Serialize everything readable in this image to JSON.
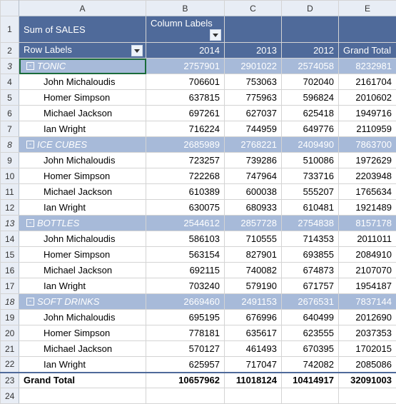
{
  "columns": [
    "A",
    "B",
    "C",
    "D",
    "E"
  ],
  "header": {
    "row1": {
      "a": "Sum of SALES",
      "b": "Column Labels"
    },
    "row2": {
      "a": "Row Labels",
      "b": "2014",
      "c": "2013",
      "d": "2012",
      "e": "Grand Total"
    }
  },
  "groups": [
    {
      "name": "TONIC",
      "totals": {
        "b": "2757901",
        "c": "2901022",
        "d": "2574058",
        "e": "8232981"
      },
      "rows": [
        {
          "name": "John Michaloudis",
          "b": "706601",
          "c": "753063",
          "d": "702040",
          "e": "2161704"
        },
        {
          "name": "Homer Simpson",
          "b": "637815",
          "c": "775963",
          "d": "596824",
          "e": "2010602"
        },
        {
          "name": "Michael Jackson",
          "b": "697261",
          "c": "627037",
          "d": "625418",
          "e": "1949716"
        },
        {
          "name": "Ian Wright",
          "b": "716224",
          "c": "744959",
          "d": "649776",
          "e": "2110959"
        }
      ]
    },
    {
      "name": "ICE CUBES",
      "totals": {
        "b": "2685989",
        "c": "2768221",
        "d": "2409490",
        "e": "7863700"
      },
      "rows": [
        {
          "name": "John Michaloudis",
          "b": "723257",
          "c": "739286",
          "d": "510086",
          "e": "1972629"
        },
        {
          "name": "Homer Simpson",
          "b": "722268",
          "c": "747964",
          "d": "733716",
          "e": "2203948"
        },
        {
          "name": "Michael Jackson",
          "b": "610389",
          "c": "600038",
          "d": "555207",
          "e": "1765634"
        },
        {
          "name": "Ian Wright",
          "b": "630075",
          "c": "680933",
          "d": "610481",
          "e": "1921489"
        }
      ]
    },
    {
      "name": "BOTTLES",
      "totals": {
        "b": "2544612",
        "c": "2857728",
        "d": "2754838",
        "e": "8157178"
      },
      "rows": [
        {
          "name": "John Michaloudis",
          "b": "586103",
          "c": "710555",
          "d": "714353",
          "e": "2011011"
        },
        {
          "name": "Homer Simpson",
          "b": "563154",
          "c": "827901",
          "d": "693855",
          "e": "2084910"
        },
        {
          "name": "Michael Jackson",
          "b": "692115",
          "c": "740082",
          "d": "674873",
          "e": "2107070"
        },
        {
          "name": "Ian Wright",
          "b": "703240",
          "c": "579190",
          "d": "671757",
          "e": "1954187"
        }
      ]
    },
    {
      "name": "SOFT DRINKS",
      "totals": {
        "b": "2669460",
        "c": "2491153",
        "d": "2676531",
        "e": "7837144"
      },
      "rows": [
        {
          "name": "John Michaloudis",
          "b": "695195",
          "c": "676996",
          "d": "640499",
          "e": "2012690"
        },
        {
          "name": "Homer Simpson",
          "b": "778181",
          "c": "635617",
          "d": "623555",
          "e": "2037353"
        },
        {
          "name": "Michael Jackson",
          "b": "570127",
          "c": "461493",
          "d": "670395",
          "e": "1702015"
        },
        {
          "name": "Ian Wright",
          "b": "625957",
          "c": "717047",
          "d": "742082",
          "e": "2085086"
        }
      ]
    }
  ],
  "grand_total": {
    "label": "Grand Total",
    "b": "10657962",
    "c": "11018124",
    "d": "10414917",
    "e": "32091003"
  },
  "row_numbers": [
    1,
    2,
    3,
    4,
    5,
    6,
    7,
    8,
    9,
    10,
    11,
    12,
    13,
    14,
    15,
    16,
    17,
    18,
    19,
    20,
    21,
    22,
    23,
    24
  ]
}
